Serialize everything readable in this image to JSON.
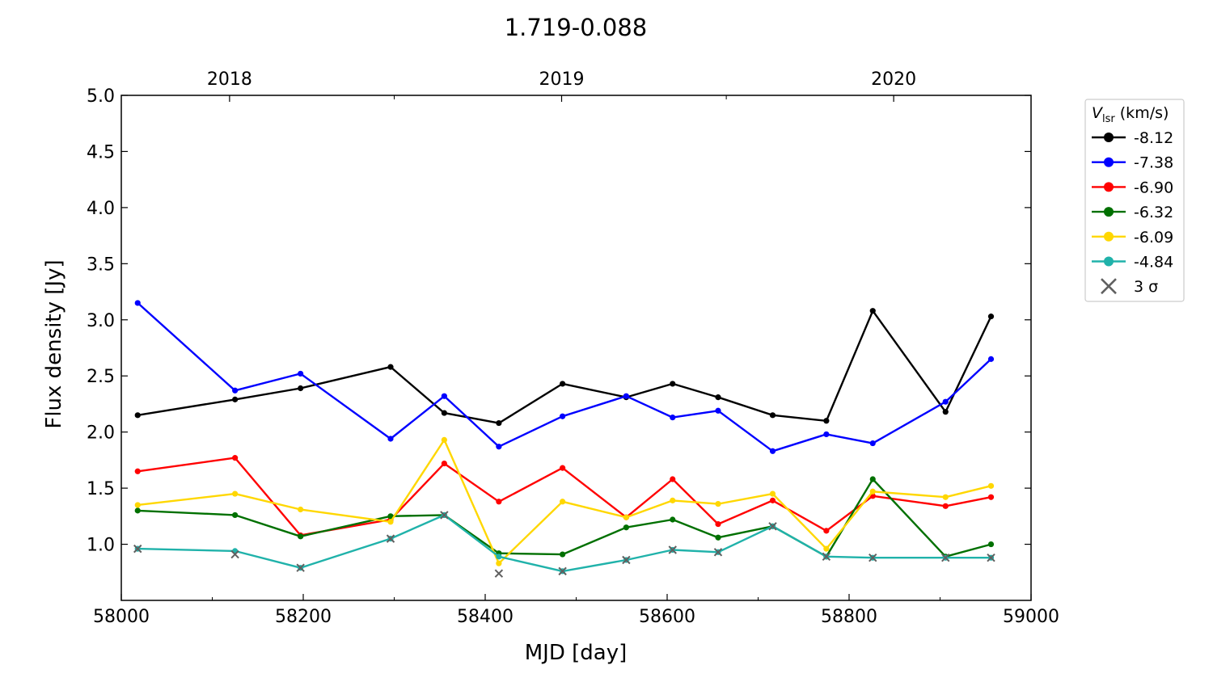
{
  "chart_data": {
    "type": "line",
    "title": "1.719-0.088",
    "xlabel": "MJD [day]",
    "ylabel": "Flux density [Jy]",
    "xlim": [
      58000,
      59000
    ],
    "ylim": [
      0.5,
      5.0
    ],
    "xticks": [
      58000,
      58200,
      58400,
      58600,
      58800,
      59000
    ],
    "xtick_labels": [
      "58000",
      "58200",
      "58400",
      "58600",
      "58800",
      "59000"
    ],
    "yticks": [
      1.0,
      1.5,
      2.0,
      2.5,
      3.0,
      3.5,
      4.0,
      4.5,
      5.0
    ],
    "ytick_labels": [
      "1.0",
      "1.5",
      "2.0",
      "2.5",
      "3.0",
      "3.5",
      "4.0",
      "4.5",
      "5.0"
    ],
    "top_axis": {
      "ticks": [
        58119,
        58484,
        58849
      ],
      "labels": [
        "2018",
        "2019",
        "2020"
      ],
      "minor_ticks": [
        58300,
        58665,
        59031
      ]
    },
    "legend": {
      "title_main": "V",
      "title_sub": "lsr",
      "title_unit": " (km/s)",
      "placement": "outside-right",
      "sigma_label": "3 σ"
    },
    "x": [
      58018,
      58125,
      58197,
      58296,
      58355,
      58415,
      58485,
      58555,
      58606,
      58656,
      58716,
      58775,
      58826,
      58906,
      58956
    ],
    "series": [
      {
        "name": "-8.12",
        "color": "#000000",
        "values": [
          2.15,
          2.29,
          2.39,
          2.58,
          2.17,
          2.08,
          2.43,
          2.31,
          2.43,
          2.31,
          2.15,
          2.1,
          3.08,
          2.18,
          3.03
        ]
      },
      {
        "name": "-7.38",
        "color": "#0000ff",
        "values": [
          3.15,
          2.37,
          2.52,
          1.94,
          2.32,
          1.87,
          2.14,
          2.32,
          2.13,
          2.19,
          1.83,
          1.98,
          1.9,
          2.27,
          2.65
        ]
      },
      {
        "name": "-6.90",
        "color": "#ff0000",
        "values": [
          1.65,
          1.77,
          1.08,
          1.22,
          1.72,
          1.38,
          1.68,
          1.24,
          1.58,
          1.18,
          1.39,
          1.12,
          1.43,
          1.34,
          1.42
        ]
      },
      {
        "name": "-6.32",
        "color": "#007000",
        "values": [
          1.3,
          1.26,
          1.07,
          1.25,
          1.26,
          0.92,
          0.91,
          1.15,
          1.22,
          1.06,
          1.16,
          0.89,
          1.58,
          0.89,
          1.0
        ]
      },
      {
        "name": "-6.09",
        "color": "#ffd700",
        "values": [
          1.35,
          1.45,
          1.31,
          1.2,
          1.93,
          0.83,
          1.38,
          1.24,
          1.39,
          1.36,
          1.45,
          0.96,
          1.47,
          1.42,
          1.52
        ]
      },
      {
        "name": "-4.84",
        "color": "#20b2aa",
        "values": [
          0.96,
          0.94,
          0.79,
          1.05,
          1.26,
          0.89,
          0.76,
          0.86,
          0.95,
          0.93,
          1.16,
          0.89,
          0.88,
          0.88,
          0.88
        ]
      }
    ],
    "sigma_markers": [
      {
        "x": 58018,
        "y": 0.96
      },
      {
        "x": 58125,
        "y": 0.91
      },
      {
        "x": 58197,
        "y": 0.79
      },
      {
        "x": 58296,
        "y": 1.05
      },
      {
        "x": 58355,
        "y": 1.26
      },
      {
        "x": 58415,
        "y": 0.74
      },
      {
        "x": 58485,
        "y": 0.76
      },
      {
        "x": 58555,
        "y": 0.86
      },
      {
        "x": 58606,
        "y": 0.95
      },
      {
        "x": 58656,
        "y": 0.93
      },
      {
        "x": 58716,
        "y": 1.16
      },
      {
        "x": 58775,
        "y": 0.89
      },
      {
        "x": 58826,
        "y": 0.88
      },
      {
        "x": 58906,
        "y": 0.88
      },
      {
        "x": 58956,
        "y": 0.88
      }
    ],
    "sigma_color": "#606060",
    "grid": false
  }
}
